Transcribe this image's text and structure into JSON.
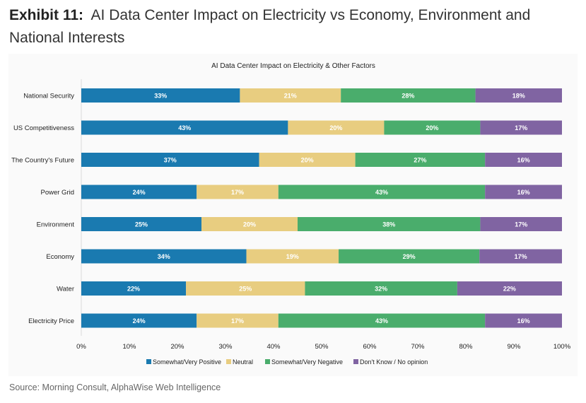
{
  "header": {
    "exhibit": "Exhibit 11:",
    "title": "AI Data Center Impact on Electricity vs Economy, Environment and National Interests"
  },
  "source": "Source: Morning Consult, AlphaWise Web Intelligence",
  "chart_data": {
    "type": "bar",
    "orientation": "horizontal",
    "stacked": "100%",
    "title": "AI Data Center Impact on Electricity & Other Factors",
    "categories": [
      "National Security",
      "US Competitiveness",
      "The Country's Future",
      "Power Grid",
      "Environment",
      "Economy",
      "Water",
      "Electricity Price"
    ],
    "series": [
      {
        "name": "Somewhat/Very Positive",
        "color": "#1a7ab0",
        "values": [
          33,
          43,
          37,
          24,
          25,
          34,
          22,
          24
        ]
      },
      {
        "name": "Neutral",
        "color": "#e8cd80",
        "values": [
          21,
          20,
          20,
          17,
          20,
          19,
          25,
          17
        ]
      },
      {
        "name": "Somewhat/Very Negative",
        "color": "#4aad6c",
        "values": [
          28,
          20,
          27,
          43,
          38,
          29,
          32,
          43
        ]
      },
      {
        "name": "Don't Know / No opinion",
        "color": "#8064a2",
        "values": [
          18,
          17,
          16,
          16,
          17,
          17,
          22,
          16
        ]
      }
    ],
    "xlim": [
      0,
      100
    ],
    "xticks": [
      "0%",
      "10%",
      "20%",
      "30%",
      "40%",
      "50%",
      "60%",
      "70%",
      "80%",
      "90%",
      "100%"
    ],
    "legend": "bottom"
  }
}
